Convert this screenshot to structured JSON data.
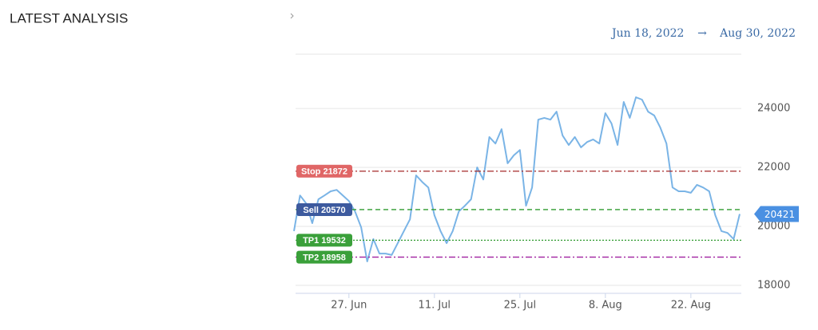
{
  "header": {
    "title": "LATEST ANALYSIS"
  },
  "chart_data": {
    "type": "line",
    "range": {
      "start": "Jun 18, 2022",
      "separator": "→",
      "end": "Aug 30, 2022"
    },
    "x": [
      "2022-06-18",
      "2022-06-19",
      "2022-06-20",
      "2022-06-21",
      "2022-06-22",
      "2022-06-23",
      "2022-06-24",
      "2022-06-25",
      "2022-06-26",
      "2022-06-27",
      "2022-06-28",
      "2022-06-29",
      "2022-06-30",
      "2022-07-01",
      "2022-07-02",
      "2022-07-03",
      "2022-07-04",
      "2022-07-05",
      "2022-07-06",
      "2022-07-07",
      "2022-07-08",
      "2022-07-09",
      "2022-07-10",
      "2022-07-11",
      "2022-07-12",
      "2022-07-13",
      "2022-07-14",
      "2022-07-15",
      "2022-07-16",
      "2022-07-17",
      "2022-07-18",
      "2022-07-19",
      "2022-07-20",
      "2022-07-21",
      "2022-07-22",
      "2022-07-23",
      "2022-07-24",
      "2022-07-25",
      "2022-07-26",
      "2022-07-27",
      "2022-07-28",
      "2022-07-29",
      "2022-07-30",
      "2022-07-31",
      "2022-08-01",
      "2022-08-02",
      "2022-08-03",
      "2022-08-04",
      "2022-08-05",
      "2022-08-06",
      "2022-08-07",
      "2022-08-08",
      "2022-08-09",
      "2022-08-10",
      "2022-08-11",
      "2022-08-12",
      "2022-08-13",
      "2022-08-14",
      "2022-08-15",
      "2022-08-16",
      "2022-08-17",
      "2022-08-18",
      "2022-08-19",
      "2022-08-20",
      "2022-08-21",
      "2022-08-22",
      "2022-08-23",
      "2022-08-24",
      "2022-08-25",
      "2022-08-26",
      "2022-08-27",
      "2022-08-28",
      "2022-08-29",
      "2022-08-30"
    ],
    "series": [
      {
        "color": "#7ab4e6",
        "values": [
          19840,
          21050,
          20780,
          20110,
          20920,
          21050,
          21190,
          21240,
          21050,
          20860,
          20510,
          19970,
          18810,
          19570,
          19080,
          19080,
          19030,
          19430,
          19840,
          20240,
          21730,
          21510,
          21320,
          20380,
          19840,
          19430,
          19840,
          20510,
          20700,
          20920,
          22000,
          21590,
          23030,
          22810,
          23300,
          22140,
          22410,
          22590,
          20700,
          21320,
          23620,
          23680,
          23620,
          23890,
          23080,
          22760,
          23030,
          22680,
          22860,
          22950,
          22810,
          23840,
          23490,
          22760,
          24220,
          23680,
          24380,
          24300,
          23890,
          23760,
          23350,
          22810,
          21320,
          21190,
          21190,
          21140,
          21410,
          21320,
          21190,
          20380,
          19840,
          19780,
          19570,
          20421
        ]
      }
    ],
    "levels": [
      {
        "value": 21872,
        "label": "Stop 21872",
        "color": "#a52a2a",
        "box_color": "#e06666",
        "style": "dash-dot"
      },
      {
        "value": 20570,
        "label": "Sell 20570",
        "color": "#2e9a2e",
        "box_color": "#3d5a9e",
        "style": "dashed"
      },
      {
        "value": 19532,
        "label": "TP1 19532",
        "color": "#2e9a2e",
        "box_color": "#3aa03a",
        "style": "dotted"
      },
      {
        "value": 18958,
        "label": "TP2 18958",
        "color": "#a020a0",
        "box_color": "#3aa03a",
        "style": "dash-dot"
      }
    ],
    "last_value_color": "#4a90e2",
    "xlim": [
      "2022-06-18",
      "2022-08-30"
    ],
    "xticks": [
      {
        "value": "2022-06-27",
        "label": "27. Jun"
      },
      {
        "value": "2022-07-11",
        "label": "11. Jul"
      },
      {
        "value": "2022-07-25",
        "label": "25. Jul"
      },
      {
        "value": "2022-08-08",
        "label": "8. Aug"
      },
      {
        "value": "2022-08-22",
        "label": "22. Aug"
      }
    ],
    "ylim": [
      17730,
      25840
    ],
    "yticks": [
      18000,
      20000,
      22000,
      24000
    ],
    "grid": true
  }
}
